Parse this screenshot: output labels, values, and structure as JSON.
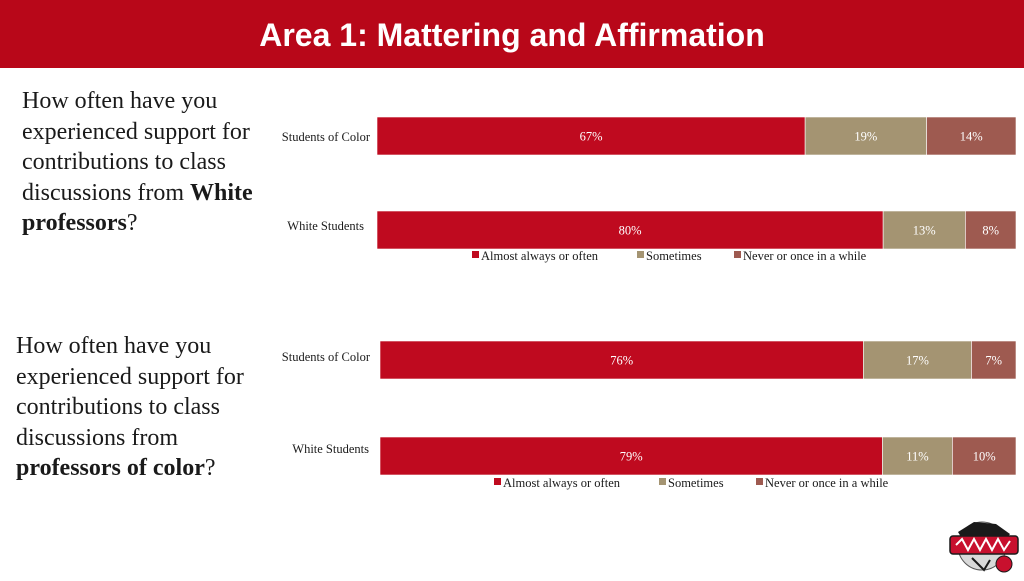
{
  "header": {
    "title": "Area 1: Mattering and Affirmation"
  },
  "questions": [
    {
      "pre": "How often have you experienced support for contributions to class discussions from ",
      "bold": "White professors",
      "post": "?"
    },
    {
      "pre": "How often have you experienced support for contributions to class discussions from ",
      "bold": "professors of color",
      "post": "?"
    }
  ],
  "colors": {
    "almost_always": "#bf0a1f",
    "sometimes": "#a49472",
    "never": "#9e5a50",
    "header": "#b80719"
  },
  "chart_data": [
    {
      "type": "bar",
      "orientation": "horizontal",
      "stacked": true,
      "percent": true,
      "categories": [
        "Students of Color",
        "White Students"
      ],
      "series": [
        {
          "name": "Almost always or often",
          "values": [
            67,
            80
          ]
        },
        {
          "name": "Sometimes",
          "values": [
            19,
            13
          ]
        },
        {
          "name": "Never or once in a while",
          "values": [
            14,
            8
          ]
        }
      ],
      "legend": "bottom"
    },
    {
      "type": "bar",
      "orientation": "horizontal",
      "stacked": true,
      "percent": true,
      "categories": [
        "Students of Color",
        "White Students"
      ],
      "series": [
        {
          "name": "Almost always or often",
          "values": [
            76,
            79
          ]
        },
        {
          "name": "Sometimes",
          "values": [
            17,
            11
          ]
        },
        {
          "name": "Never or once in a while",
          "values": [
            7,
            10
          ]
        }
      ],
      "legend": "bottom"
    }
  ],
  "logo": {
    "icon": "team-logo-badge"
  }
}
